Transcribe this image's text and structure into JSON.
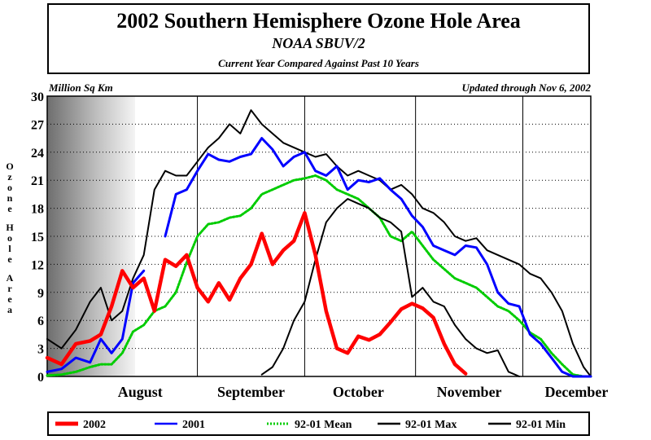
{
  "header": {
    "title": "2002 Southern Hemisphere Ozone Hole Area",
    "subtitle": "NOAA SBUV/2",
    "description": "Current Year Compared Against Past 10 Years"
  },
  "units_label": "Million Sq Km",
  "updated_label": "Updated through Nov 6, 2002",
  "chart_data": {
    "type": "line",
    "title": "2002 Southern Hemisphere Ozone Hole Area",
    "ylabel": "Ozone Hole Area",
    "yunits": "Million Sq Km",
    "ylim": [
      0,
      30
    ],
    "yticks": [
      0,
      3,
      6,
      9,
      12,
      15,
      18,
      21,
      24,
      27,
      30
    ],
    "xlim": [
      "2002-07-20",
      "2002-12-19"
    ],
    "month_labels": [
      {
        "label": "August",
        "date": "2002-08-15"
      },
      {
        "label": "September",
        "date": "2002-09-15"
      },
      {
        "label": "October",
        "date": "2002-10-15"
      },
      {
        "label": "November",
        "date": "2002-11-15"
      },
      {
        "label": "December",
        "date": "2002-12-15"
      }
    ],
    "month_boundaries": [
      "2002-08-31",
      "2002-09-30",
      "2002-10-31",
      "2002-11-30"
    ],
    "x_dates": [
      "2002-07-20",
      "2002-07-24",
      "2002-07-28",
      "2002-08-01",
      "2002-08-04",
      "2002-08-07",
      "2002-08-10",
      "2002-08-13",
      "2002-08-16",
      "2002-08-19",
      "2002-08-22",
      "2002-08-25",
      "2002-08-28",
      "2002-08-31",
      "2002-09-03",
      "2002-09-06",
      "2002-09-09",
      "2002-09-12",
      "2002-09-15",
      "2002-09-18",
      "2002-09-21",
      "2002-09-24",
      "2002-09-27",
      "2002-09-30",
      "2002-10-03",
      "2002-10-06",
      "2002-10-09",
      "2002-10-12",
      "2002-10-15",
      "2002-10-18",
      "2002-10-21",
      "2002-10-24",
      "2002-10-27",
      "2002-10-30",
      "2002-11-02",
      "2002-11-05",
      "2002-11-08",
      "2002-11-11",
      "2002-11-14",
      "2002-11-17",
      "2002-11-20",
      "2002-11-23",
      "2002-11-26",
      "2002-11-29",
      "2002-12-02",
      "2002-12-05",
      "2002-12-08",
      "2002-12-11",
      "2002-12-14",
      "2002-12-17",
      "2002-12-19"
    ],
    "series": [
      {
        "name": "2002",
        "color": "#ff0000",
        "values": [
          2,
          1.3,
          3.5,
          3.8,
          4.5,
          7.5,
          11.3,
          9.5,
          10.5,
          7,
          12.5,
          11.8,
          13,
          9.5,
          8,
          10,
          8.2,
          10.5,
          12,
          15.3,
          12,
          13.5,
          14.5,
          17.5,
          13,
          7,
          3,
          2.5,
          4.3,
          3.9,
          4.5,
          5.8,
          7.2,
          7.8,
          7.3,
          6.3,
          3.5,
          1.3,
          0.3,
          null,
          null,
          null,
          null,
          null,
          null,
          null,
          null,
          null,
          null,
          null,
          null
        ]
      },
      {
        "name": "2001",
        "color": "#0000ff",
        "values": [
          0.5,
          0.8,
          2,
          1.5,
          4,
          2.5,
          4,
          10,
          11.3,
          null,
          15,
          19.5,
          20,
          22,
          23.8,
          23.2,
          23,
          23.5,
          23.8,
          25.5,
          24.3,
          22.5,
          23.5,
          24,
          22,
          21.5,
          22.5,
          20,
          21,
          20.8,
          21.2,
          20,
          19,
          17.2,
          16,
          14,
          13.5,
          13,
          14,
          13.8,
          12,
          9,
          7.8,
          7.5,
          4.5,
          3.5,
          2,
          0.5,
          0,
          0,
          0
        ]
      },
      {
        "name": "92-01 Mean",
        "color": "#00cc00",
        "dashed": true,
        "values": [
          0.1,
          0.2,
          0.5,
          1,
          1.3,
          1.3,
          2.5,
          4.8,
          5.5,
          7,
          7.5,
          9,
          12.2,
          15,
          16.3,
          16.5,
          17,
          17.2,
          18,
          19.5,
          20,
          20.5,
          21,
          21.2,
          21.5,
          21,
          20,
          19.5,
          19,
          18,
          17,
          15,
          14.5,
          15.5,
          14,
          12.5,
          11.5,
          10.5,
          10,
          9.5,
          8.5,
          7.5,
          7,
          6,
          4.7,
          4,
          2.5,
          1.3,
          0.2,
          0,
          0
        ]
      },
      {
        "name": "92-01 Max",
        "color": "#000000",
        "values": [
          4,
          3,
          5,
          8,
          9.5,
          6,
          7,
          10.5,
          13,
          20,
          22,
          21.5,
          21.5,
          23,
          24.5,
          25.5,
          27,
          26,
          28.5,
          27,
          26,
          25,
          24.5,
          24,
          23.5,
          23.8,
          22.5,
          21.5,
          22,
          21.5,
          21,
          20,
          20.5,
          19.5,
          18,
          17.5,
          16.5,
          15,
          14.5,
          14.8,
          13.5,
          13,
          12.5,
          12,
          11,
          10.5,
          9,
          7,
          3.5,
          1,
          0
        ]
      },
      {
        "name": "92-01 Min",
        "color": "#000000",
        "values": [
          null,
          null,
          null,
          null,
          null,
          null,
          null,
          null,
          null,
          null,
          null,
          null,
          null,
          null,
          null,
          null,
          null,
          null,
          null,
          0.2,
          1,
          3,
          6,
          8,
          12.5,
          16.5,
          18,
          19,
          18.5,
          18,
          17,
          16.5,
          15.5,
          8.5,
          9.5,
          8,
          7.5,
          5.5,
          4,
          3,
          2.5,
          2.8,
          0.5,
          0,
          null,
          null,
          null,
          null,
          null,
          null,
          null
        ]
      }
    ]
  },
  "legend": [
    {
      "label": "2002",
      "color": "#ff0000",
      "style": "thick"
    },
    {
      "label": "2001",
      "color": "#0000ff",
      "style": "solid"
    },
    {
      "label": "92-01 Mean",
      "color": "#00cc00",
      "style": "dashed"
    },
    {
      "label": "92-01 Max",
      "color": "#000000",
      "style": "solid"
    },
    {
      "label": "92-01 Min",
      "color": "#000000",
      "style": "solid"
    }
  ]
}
